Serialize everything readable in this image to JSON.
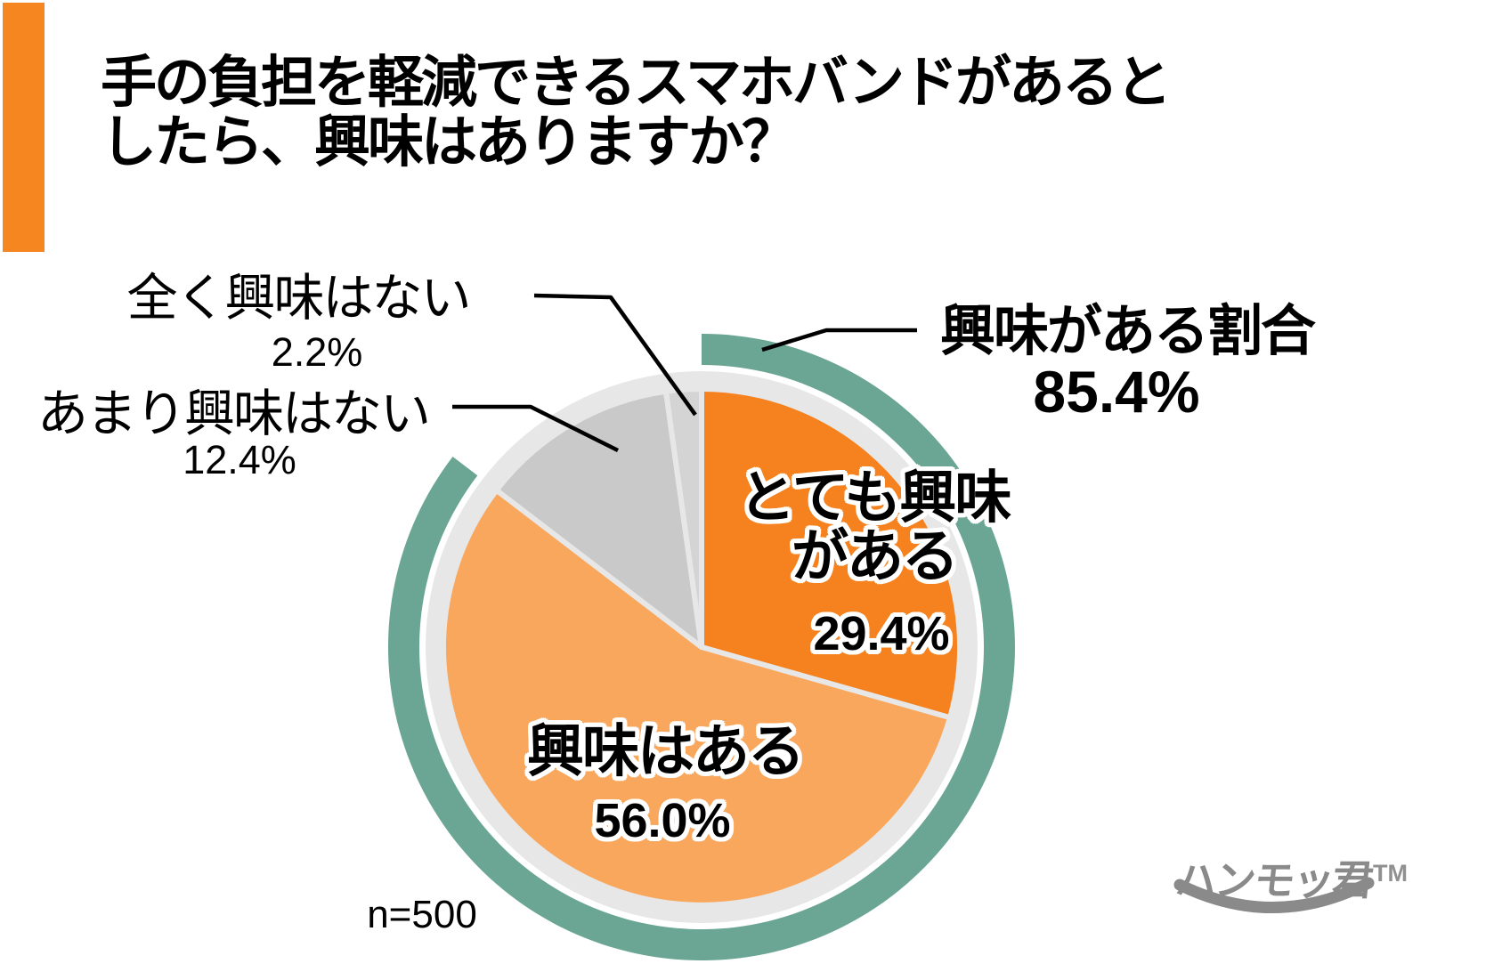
{
  "meta": {
    "background": "#FFFFFF"
  },
  "accent_bar": {
    "color": "#F6861F"
  },
  "title": {
    "line1": "手の負担を軽減できるスマホバンドがあると",
    "line2": "したら、興味はありますか？"
  },
  "chart_data": {
    "type": "pie",
    "title": "手の負担を軽減できるスマホバンドがあるとしたら、興味はありますか？",
    "sample_size": "n=500",
    "start_angle_deg": 0,
    "direction": "clockwise",
    "ring_color": "#E7E7E7",
    "segments": [
      {
        "label": "とても興味がある",
        "label_lines": [
          "とても興味",
          "がある"
        ],
        "value": 29.4,
        "pct": "29.4%",
        "color": "#F5821E",
        "label_inside": true
      },
      {
        "label": "興味はある",
        "label_lines": [
          "興味はある"
        ],
        "value": 56.0,
        "pct": "56.0%",
        "color": "#F9A75D",
        "label_inside": true
      },
      {
        "label": "あまり興味はない",
        "value": 12.4,
        "pct": "12.4%",
        "color": "#C9C9C9",
        "label_inside": false
      },
      {
        "label": "全く興味はない",
        "value": 2.2,
        "pct": "2.2%",
        "color": "#D4D4D4",
        "label_inside": false
      }
    ],
    "highlight_arc": {
      "label": "興味がある割合",
      "value": 85.4,
      "pct": "85.4%",
      "color": "#6AA693",
      "covers_segments": [
        0,
        1
      ]
    }
  },
  "logo": {
    "text": "ハンモッ君",
    "trademark": "TM",
    "color": "#8A8A8A"
  }
}
